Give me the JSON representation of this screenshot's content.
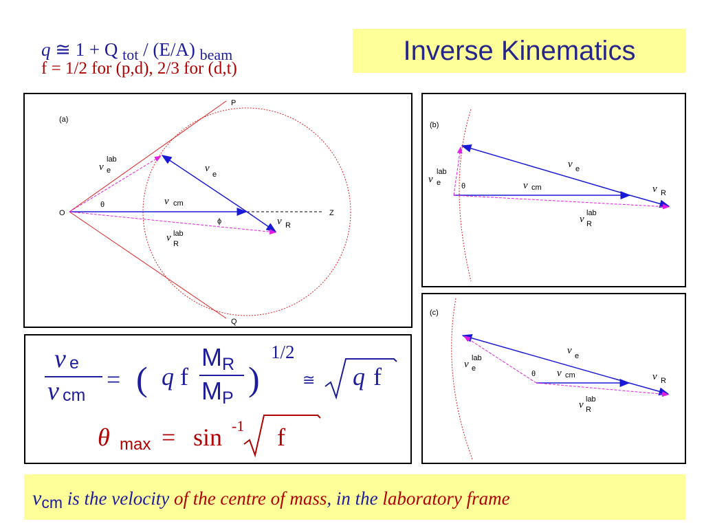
{
  "header": {
    "q_symbol": "q",
    "q_expr": "≅ 1 + Q",
    "q_sub_tot": "tot",
    "q_expr2": "/ (E/A)",
    "q_sub_beam": "beam",
    "f_line": "f = 1/2 for (p,d), 2/3 for (d,t)"
  },
  "title": "Inverse Kinematics",
  "panel_a": {
    "label": "(a)",
    "p": "P",
    "q": "Q",
    "o": "O",
    "z": "Z",
    "theta": "θ",
    "phi": "ϕ",
    "v": "v",
    "lab": "lab",
    "e": "e",
    "cm": "cm",
    "r": "R"
  },
  "panel_b": {
    "label": "(b)"
  },
  "panel_c": {
    "label": "(c)"
  },
  "formula": {
    "v": "v",
    "e": "e",
    "cm": "cm",
    "equals": "=",
    "lparen": "(",
    "rparen": ")",
    "q": "q",
    "f": "f",
    "M": "M",
    "R": "R",
    "P": "P",
    "exp": "1/2",
    "approx": "≅",
    "theta": "θ",
    "max": "max",
    "sin": "sin",
    "sin_exp": "-1"
  },
  "footer": {
    "vcm_v": "v",
    "vcm_sub": "cm",
    "part1": " is the velocity ",
    "part2": "of the centre of mass",
    "part3": ", in the ",
    "part4": "laboratory frame"
  }
}
